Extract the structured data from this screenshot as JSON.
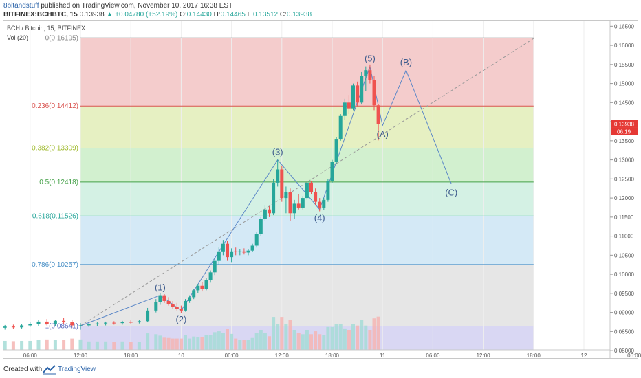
{
  "header": {
    "publisher": "8bitandstuff",
    "published_text": "published on TradingView.com, November 10, 2017 16:38 EST",
    "symbol": "BITFINEX:BCHBTC, 15",
    "last": "0.13938",
    "change": "▲ +0.04780 (+52.19%)",
    "o_label": "O:",
    "o": "0.14430",
    "h_label": "H:",
    "h": "0.14465",
    "l_label": "L:",
    "l": "0.13512",
    "c_label": "C:",
    "c": "0.13938"
  },
  "footer": {
    "created_with": "Created with",
    "brand": "TradingView"
  },
  "colors": {
    "candle_up": "#26a69a",
    "candle_down": "#ef5350",
    "wave_line": "#5b87c7",
    "trend_dash": "#999999",
    "price_marker": "#e53935"
  },
  "chart_data": {
    "type": "candlestick",
    "title": "BCH / Bitcoin, 15, BITFINEX",
    "volume_label": "Vol (20)",
    "price_axis": {
      "ylim": [
        0.0802,
        0.1665
      ],
      "ticks": [
        "0.16500",
        "0.16000",
        "0.15500",
        "0.15000",
        "0.14500",
        "0.14000",
        "0.13500",
        "0.13000",
        "0.12500",
        "0.12000",
        "0.11500",
        "0.11000",
        "0.10500",
        "0.10000",
        "0.09500",
        "0.09000",
        "0.08500",
        "0.08000"
      ]
    },
    "last_price_label": "0.13938",
    "countdown_label": "06:19",
    "time_axis": {
      "labels": [
        "06:00",
        "12:00",
        "18:00",
        "10",
        "06:00",
        "12:00",
        "18:00",
        "11",
        "06:00",
        "12:00",
        "18:00",
        "12",
        "06:00"
      ],
      "hours": [
        -6,
        0,
        6,
        12,
        18,
        24,
        30,
        36,
        42,
        48,
        54,
        60,
        66
      ]
    },
    "fib_levels": [
      {
        "label": "0(0.16195)",
        "value": 0.16195,
        "color": "#8a8a8a",
        "fill": "#f4cccc"
      },
      {
        "label": "0.236(0.14412)",
        "value": 0.14412,
        "color": "#d9534f",
        "fill": "#e6f0c2"
      },
      {
        "label": "0.382(0.13309)",
        "value": 0.13309,
        "color": "#9fba2c",
        "fill": "#d2f0cf"
      },
      {
        "label": "0.5(0.12418)",
        "value": 0.12418,
        "color": "#43a047",
        "fill": "#d4f1e4"
      },
      {
        "label": "0.618(0.11526)",
        "value": 0.11526,
        "color": "#26a69a",
        "fill": "#d4e9f6"
      },
      {
        "label": "0.786(0.10257)",
        "value": 0.10257,
        "color": "#4a90c6",
        "fill": "#e6e6e6"
      },
      {
        "label": "1(0.08641)",
        "value": 0.08641,
        "color": "#5c6bc0",
        "fill": "#d9d7f3"
      }
    ],
    "fib_x_range_hours": [
      0,
      54
    ],
    "waves": [
      {
        "label": "(1)",
        "x": 9.5,
        "y": 0.0945
      },
      {
        "label": "(2)",
        "x": 12.0,
        "y": 0.0905
      },
      {
        "label": "(3)",
        "x": 23.5,
        "y": 0.13
      },
      {
        "label": "(4)",
        "x": 28.5,
        "y": 0.117
      },
      {
        "label": "(5)",
        "x": 34.5,
        "y": 0.1545
      },
      {
        "label": "(A)",
        "x": 36.0,
        "y": 0.139
      },
      {
        "label": "(B)",
        "x": 38.8,
        "y": 0.1535
      },
      {
        "label": "(C)",
        "x": 44.2,
        "y": 0.1237
      }
    ],
    "trend_line": {
      "from": [
        0,
        0.0865
      ],
      "to": [
        54,
        0.1618
      ]
    },
    "candles": [
      {
        "t": -9.0,
        "o": 0.086,
        "h": 0.0867,
        "l": 0.0855,
        "c": 0.0863
      },
      {
        "t": -8.0,
        "o": 0.0863,
        "h": 0.0868,
        "l": 0.0857,
        "c": 0.0861
      },
      {
        "t": -7.0,
        "o": 0.0861,
        "h": 0.087,
        "l": 0.0858,
        "c": 0.0866
      },
      {
        "t": -6.0,
        "o": 0.0866,
        "h": 0.0874,
        "l": 0.0862,
        "c": 0.0869
      },
      {
        "t": -5.0,
        "o": 0.0869,
        "h": 0.088,
        "l": 0.0865,
        "c": 0.0876
      },
      {
        "t": -4.0,
        "o": 0.0876,
        "h": 0.0883,
        "l": 0.0866,
        "c": 0.087
      },
      {
        "t": -3.0,
        "o": 0.087,
        "h": 0.088,
        "l": 0.0864,
        "c": 0.0878
      },
      {
        "t": -2.0,
        "o": 0.0878,
        "h": 0.0886,
        "l": 0.087,
        "c": 0.0874
      },
      {
        "t": -1.0,
        "o": 0.0874,
        "h": 0.088,
        "l": 0.086,
        "c": 0.0866
      },
      {
        "t": 0.0,
        "o": 0.0866,
        "h": 0.0872,
        "l": 0.0855,
        "c": 0.0866
      },
      {
        "t": 1.0,
        "o": 0.0866,
        "h": 0.0872,
        "l": 0.0862,
        "c": 0.0869
      },
      {
        "t": 2.0,
        "o": 0.0869,
        "h": 0.0874,
        "l": 0.0864,
        "c": 0.0871
      },
      {
        "t": 3.0,
        "o": 0.0871,
        "h": 0.0876,
        "l": 0.0866,
        "c": 0.0873
      },
      {
        "t": 4.0,
        "o": 0.0873,
        "h": 0.0877,
        "l": 0.0868,
        "c": 0.0872
      },
      {
        "t": 5.0,
        "o": 0.0872,
        "h": 0.0878,
        "l": 0.0868,
        "c": 0.0875
      },
      {
        "t": 6.0,
        "o": 0.0875,
        "h": 0.0879,
        "l": 0.087,
        "c": 0.0874
      },
      {
        "t": 7.0,
        "o": 0.0874,
        "h": 0.088,
        "l": 0.0871,
        "c": 0.0877
      },
      {
        "t": 8.0,
        "o": 0.0877,
        "h": 0.0912,
        "l": 0.0874,
        "c": 0.0905
      },
      {
        "t": 9.0,
        "o": 0.0905,
        "h": 0.0935,
        "l": 0.09,
        "c": 0.0928
      },
      {
        "t": 9.5,
        "o": 0.0928,
        "h": 0.095,
        "l": 0.092,
        "c": 0.0945
      },
      {
        "t": 10.0,
        "o": 0.0945,
        "h": 0.0948,
        "l": 0.0925,
        "c": 0.093
      },
      {
        "t": 10.5,
        "o": 0.093,
        "h": 0.094,
        "l": 0.0918,
        "c": 0.0922
      },
      {
        "t": 11.0,
        "o": 0.0922,
        "h": 0.093,
        "l": 0.091,
        "c": 0.0915
      },
      {
        "t": 11.5,
        "o": 0.0915,
        "h": 0.0925,
        "l": 0.0905,
        "c": 0.091
      },
      {
        "t": 12.0,
        "o": 0.091,
        "h": 0.0918,
        "l": 0.0898,
        "c": 0.0905
      },
      {
        "t": 12.5,
        "o": 0.0905,
        "h": 0.0935,
        "l": 0.0902,
        "c": 0.093
      },
      {
        "t": 13.0,
        "o": 0.093,
        "h": 0.0945,
        "l": 0.0925,
        "c": 0.094
      },
      {
        "t": 13.5,
        "o": 0.094,
        "h": 0.0962,
        "l": 0.0935,
        "c": 0.0958
      },
      {
        "t": 14.0,
        "o": 0.0958,
        "h": 0.0975,
        "l": 0.095,
        "c": 0.097
      },
      {
        "t": 14.5,
        "o": 0.097,
        "h": 0.098,
        "l": 0.0955,
        "c": 0.0962
      },
      {
        "t": 15.0,
        "o": 0.0962,
        "h": 0.099,
        "l": 0.0958,
        "c": 0.0985
      },
      {
        "t": 15.5,
        "o": 0.0985,
        "h": 0.101,
        "l": 0.0978,
        "c": 0.1005
      },
      {
        "t": 16.0,
        "o": 0.1005,
        "h": 0.104,
        "l": 0.0998,
        "c": 0.1035
      },
      {
        "t": 16.5,
        "o": 0.1035,
        "h": 0.107,
        "l": 0.1025,
        "c": 0.106
      },
      {
        "t": 17.0,
        "o": 0.106,
        "h": 0.109,
        "l": 0.105,
        "c": 0.108
      },
      {
        "t": 17.5,
        "o": 0.108,
        "h": 0.1088,
        "l": 0.1035,
        "c": 0.1045
      },
      {
        "t": 18.0,
        "o": 0.1045,
        "h": 0.1068,
        "l": 0.1032,
        "c": 0.106
      },
      {
        "t": 18.5,
        "o": 0.106,
        "h": 0.107,
        "l": 0.105,
        "c": 0.1058
      },
      {
        "t": 19.0,
        "o": 0.1058,
        "h": 0.1065,
        "l": 0.105,
        "c": 0.106
      },
      {
        "t": 19.5,
        "o": 0.106,
        "h": 0.1068,
        "l": 0.1052,
        "c": 0.1057
      },
      {
        "t": 20.0,
        "o": 0.1057,
        "h": 0.1066,
        "l": 0.105,
        "c": 0.1062
      },
      {
        "t": 20.5,
        "o": 0.1062,
        "h": 0.108,
        "l": 0.1058,
        "c": 0.1075
      },
      {
        "t": 21.0,
        "o": 0.1075,
        "h": 0.111,
        "l": 0.107,
        "c": 0.1105
      },
      {
        "t": 21.5,
        "o": 0.1105,
        "h": 0.115,
        "l": 0.11,
        "c": 0.1145
      },
      {
        "t": 22.0,
        "o": 0.1145,
        "h": 0.118,
        "l": 0.114,
        "c": 0.117
      },
      {
        "t": 22.5,
        "o": 0.117,
        "h": 0.1178,
        "l": 0.115,
        "c": 0.116
      },
      {
        "t": 23.0,
        "o": 0.116,
        "h": 0.125,
        "l": 0.1155,
        "c": 0.124
      },
      {
        "t": 23.5,
        "o": 0.124,
        "h": 0.13,
        "l": 0.123,
        "c": 0.1275
      },
      {
        "t": 24.0,
        "o": 0.1275,
        "h": 0.1285,
        "l": 0.119,
        "c": 0.12
      },
      {
        "t": 24.5,
        "o": 0.12,
        "h": 0.123,
        "l": 0.116,
        "c": 0.1215
      },
      {
        "t": 25.0,
        "o": 0.1215,
        "h": 0.1225,
        "l": 0.114,
        "c": 0.116
      },
      {
        "t": 25.5,
        "o": 0.116,
        "h": 0.1195,
        "l": 0.1145,
        "c": 0.1185
      },
      {
        "t": 26.0,
        "o": 0.1185,
        "h": 0.121,
        "l": 0.117,
        "c": 0.1175
      },
      {
        "t": 26.5,
        "o": 0.1175,
        "h": 0.1205,
        "l": 0.117,
        "c": 0.12
      },
      {
        "t": 27.0,
        "o": 0.12,
        "h": 0.1245,
        "l": 0.1195,
        "c": 0.124
      },
      {
        "t": 27.5,
        "o": 0.124,
        "h": 0.1245,
        "l": 0.121,
        "c": 0.1215
      },
      {
        "t": 28.0,
        "o": 0.1215,
        "h": 0.1225,
        "l": 0.118,
        "c": 0.119
      },
      {
        "t": 28.5,
        "o": 0.119,
        "h": 0.12,
        "l": 0.1165,
        "c": 0.1175
      },
      {
        "t": 29.0,
        "o": 0.1175,
        "h": 0.12,
        "l": 0.1168,
        "c": 0.1195
      },
      {
        "t": 29.5,
        "o": 0.1195,
        "h": 0.125,
        "l": 0.119,
        "c": 0.1245
      },
      {
        "t": 30.0,
        "o": 0.1245,
        "h": 0.13,
        "l": 0.124,
        "c": 0.1295
      },
      {
        "t": 30.5,
        "o": 0.1295,
        "h": 0.136,
        "l": 0.129,
        "c": 0.1355
      },
      {
        "t": 31.0,
        "o": 0.1355,
        "h": 0.142,
        "l": 0.135,
        "c": 0.1415
      },
      {
        "t": 31.5,
        "o": 0.1415,
        "h": 0.146,
        "l": 0.1405,
        "c": 0.145
      },
      {
        "t": 32.0,
        "o": 0.145,
        "h": 0.147,
        "l": 0.142,
        "c": 0.1435
      },
      {
        "t": 32.5,
        "o": 0.1435,
        "h": 0.15,
        "l": 0.143,
        "c": 0.1495
      },
      {
        "t": 33.0,
        "o": 0.1495,
        "h": 0.1505,
        "l": 0.144,
        "c": 0.145
      },
      {
        "t": 33.5,
        "o": 0.145,
        "h": 0.153,
        "l": 0.1445,
        "c": 0.152
      },
      {
        "t": 34.0,
        "o": 0.152,
        "h": 0.1545,
        "l": 0.148,
        "c": 0.1535
      },
      {
        "t": 34.5,
        "o": 0.1535,
        "h": 0.155,
        "l": 0.15,
        "c": 0.151
      },
      {
        "t": 35.0,
        "o": 0.151,
        "h": 0.152,
        "l": 0.143,
        "c": 0.1443
      },
      {
        "t": 35.5,
        "o": 0.1443,
        "h": 0.1447,
        "l": 0.1351,
        "c": 0.1394
      }
    ]
  }
}
